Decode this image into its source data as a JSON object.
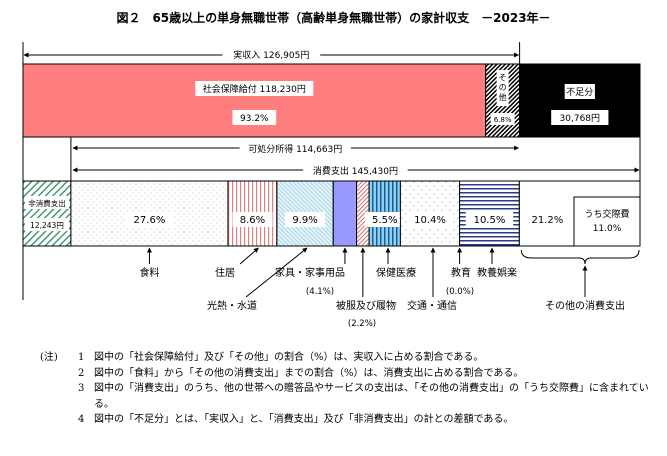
{
  "chart_data": {
    "type": "bar",
    "title": "図２　65歳以上の単身無職世帯（高齢単身無職世帯）の家計収支　－2023年－",
    "unit": "円",
    "top_bar": {
      "total_label": "実収入",
      "total_value": "126,905円",
      "segments": [
        {
          "name": "社会保障給付",
          "amount": 118230,
          "amount_label": "118,230円",
          "pct": "93.2%",
          "color": "#ff7f7f"
        },
        {
          "name": "その他",
          "amount": 8675,
          "pct": "6.8%",
          "color": "#ffffff"
        },
        {
          "name": "不足分",
          "amount": 30768,
          "amount_label": "30,768円",
          "color": "#000000"
        }
      ]
    },
    "disposable_income": {
      "label": "可処分所得",
      "value": "114,663円"
    },
    "consumption": {
      "label": "消費支出",
      "value": "145,430円",
      "amount": 145430
    },
    "non_consumption": {
      "label": "非消費支出",
      "value": "12,243円",
      "amount": 12243
    },
    "bottom_bar": {
      "segments": [
        {
          "name": "食料",
          "pct": 27.6,
          "pct_label": "27.6%",
          "color": "#ffffff"
        },
        {
          "name": "住居",
          "pct": 8.6,
          "pct_label": "8.6%",
          "color": "#f4b8b8"
        },
        {
          "name": "光熱・水道",
          "pct": 9.9,
          "pct_label": "9.9%",
          "color": "#cfe8f0"
        },
        {
          "name": "家具・家事用品",
          "pct": 4.1,
          "pct_label": "(4.1%)",
          "color": "#9999ff"
        },
        {
          "name": "被服及び履物",
          "pct": 2.2,
          "pct_label": "(2.2%)",
          "color": "#f4b8b8"
        },
        {
          "name": "保健医療",
          "pct": 5.5,
          "pct_label": "5.5%",
          "color": "#3399cc"
        },
        {
          "name": "交通・通信",
          "pct": 10.4,
          "pct_label": "10.4%",
          "color": "#ffffff"
        },
        {
          "name": "教育",
          "pct": 0.0,
          "pct_label": "(0.0%)",
          "color": "#ffffff"
        },
        {
          "name": "教養娯楽",
          "pct": 10.5,
          "pct_label": "10.5%",
          "color": "#334499"
        },
        {
          "name": "その他の消費支出",
          "pct": 21.2,
          "pct_label": "21.2%",
          "color": "#ffffff"
        }
      ],
      "sub_item": {
        "name": "うち交際費",
        "pct_label": "11.0%"
      }
    }
  },
  "notes": {
    "head": "(注)",
    "items": [
      {
        "num": "1",
        "text": "図中の「社会保障給付」及び「その他」の割合（%）は、実収入に占める割合である。"
      },
      {
        "num": "2",
        "text": "図中の「食料」から「その他の消費支出」までの割合（%）は、消費支出に占める割合である。"
      },
      {
        "num": "3",
        "text": "図中の「消費支出」のうち、他の世帯への贈答品やサービスの支出は、「その他の消費支出」の「うち交際費」に含まれている。"
      },
      {
        "num": "4",
        "text": "図中の「不足分」とは、「実収入」と、「消費支出」及び「非消費支出」の計との差額である。"
      }
    ]
  }
}
